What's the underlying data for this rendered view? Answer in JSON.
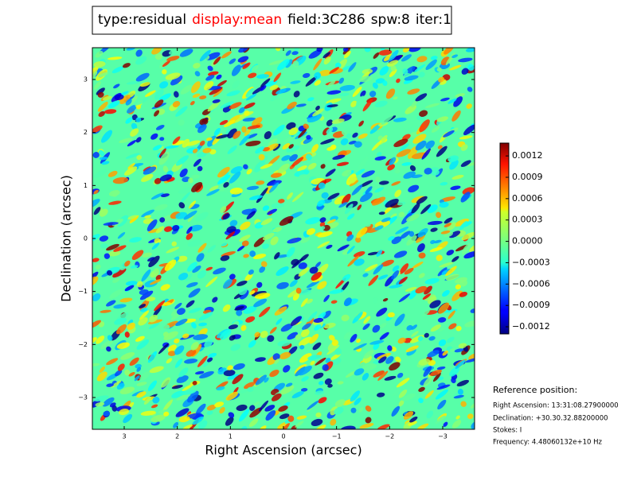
{
  "chart_data": {
    "type": "image",
    "title": [
      {
        "text": "type:residual",
        "color": "#000000"
      },
      {
        "text": "display:mean",
        "color": "#ff0000"
      },
      {
        "text": "field:3C286",
        "color": "#000000"
      },
      {
        "text": "spw:8",
        "color": "#000000"
      },
      {
        "text": "iter:1",
        "color": "#000000"
      }
    ],
    "xlabel": "Right Ascension (arcsec)",
    "ylabel": "Declination (arcsec)",
    "xlim": [
      3.6,
      -3.6
    ],
    "xticks": [
      3,
      2,
      1,
      0,
      {
        "value": -1,
        "label": "−1"
      },
      {
        "value": -2,
        "label": "−2"
      },
      {
        "value": -3,
        "label": "−3"
      }
    ],
    "ylim": [
      -3.6,
      3.6
    ],
    "yticks": [
      {
        "value": -3,
        "label": "−3"
      },
      {
        "value": -2,
        "label": "−2"
      },
      {
        "value": -1,
        "label": "−1"
      },
      0,
      1,
      2,
      3
    ],
    "colormap": "jet",
    "clim": [
      -0.0013,
      0.00138
    ],
    "cticks": [
      {
        "value": -0.0012,
        "label": "−0.0012"
      },
      {
        "value": -0.0009,
        "label": "−0.0009"
      },
      {
        "value": -0.0006,
        "label": "−0.0006"
      },
      {
        "value": -0.0003,
        "label": "−0.0003"
      },
      {
        "value": 0,
        "label": "0.0000"
      },
      0.0003,
      0.0006,
      0.0009,
      0.0012
    ],
    "reference": {
      "heading": "Reference position:",
      "lines": [
        "Right Ascension: 13:31:08.27900000",
        "Declination: +30.30.32.88200000",
        "Stokes: I",
        "Frequency: 4.48060132e+10 Hz"
      ]
    }
  }
}
